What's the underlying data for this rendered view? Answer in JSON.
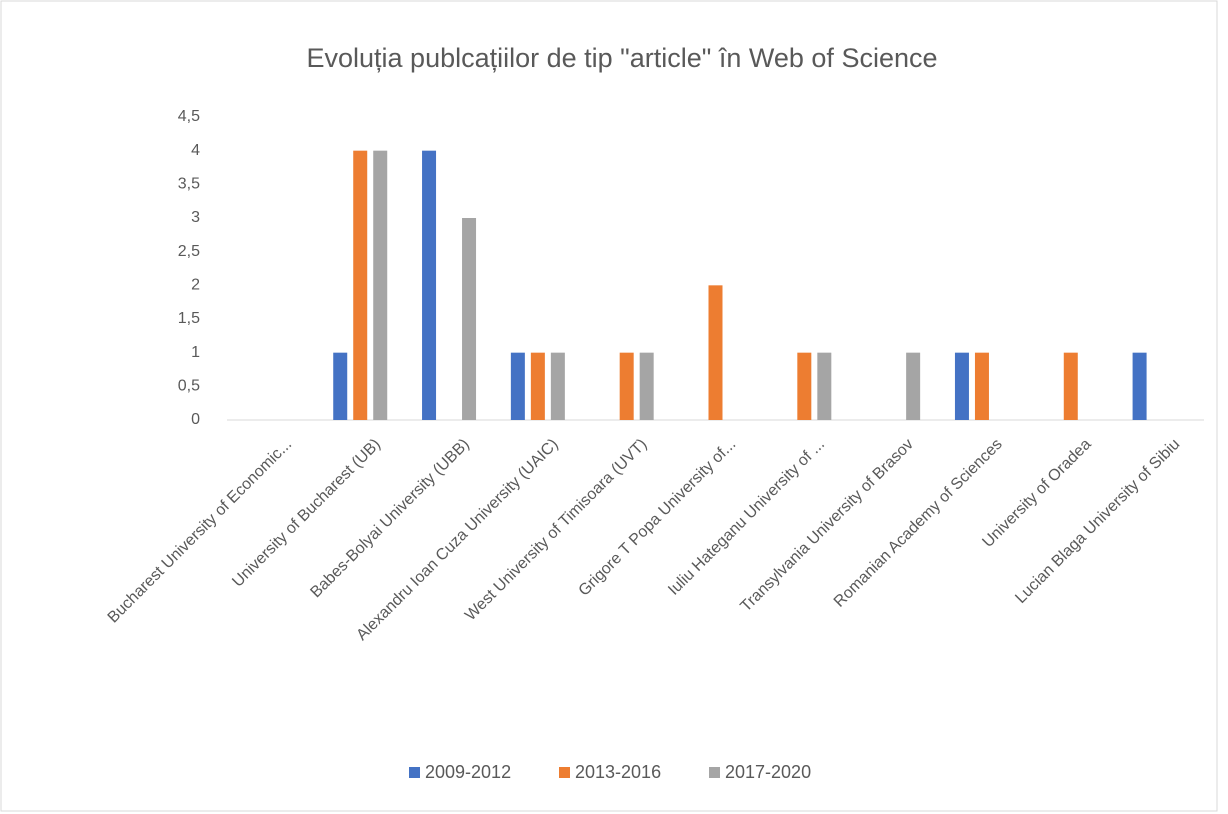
{
  "chart_data": {
    "type": "bar",
    "title": "Evoluția publcațiilor de tip \"article\" în Web of Science",
    "categories": [
      "Bucharest University of Economic...",
      "University of Bucharest (UB)",
      "Babes-Bolyai University (UBB)",
      "Alexandru Ioan Cuza University (UAIC)",
      "West University of Timisoara (UVT)",
      "Grigore T Popa University of...",
      "Iuliu Hateganu University of ...",
      "Transylvania University of Brasov",
      "Romanian Academy of Sciences",
      "University of Oradea",
      "Lucian Blaga University of Sibiu"
    ],
    "series": [
      {
        "name": "2009-2012",
        "color": "#4472c4",
        "values": [
          0,
          1,
          4,
          1,
          0,
          0,
          0,
          0,
          1,
          0,
          1
        ]
      },
      {
        "name": "2013-2016",
        "color": "#ed7d31",
        "values": [
          0,
          4,
          0,
          1,
          1,
          2,
          1,
          0,
          1,
          1,
          0
        ]
      },
      {
        "name": "2017-2020",
        "color": "#a5a5a5",
        "values": [
          0,
          4,
          3,
          1,
          1,
          0,
          1,
          1,
          0,
          0,
          0
        ]
      }
    ],
    "ylim": [
      0,
      4.5
    ],
    "yticks": [
      0,
      {
        "value": 0.5,
        "label": "0,5"
      },
      1,
      {
        "value": 1.5,
        "label": "1,5"
      },
      2,
      {
        "value": 2.5,
        "label": "2,5"
      },
      3,
      {
        "value": 3.5,
        "label": "3,5"
      },
      4,
      {
        "value": 4.5,
        "label": "4,5"
      }
    ],
    "grid": false,
    "legend": "bottom"
  }
}
